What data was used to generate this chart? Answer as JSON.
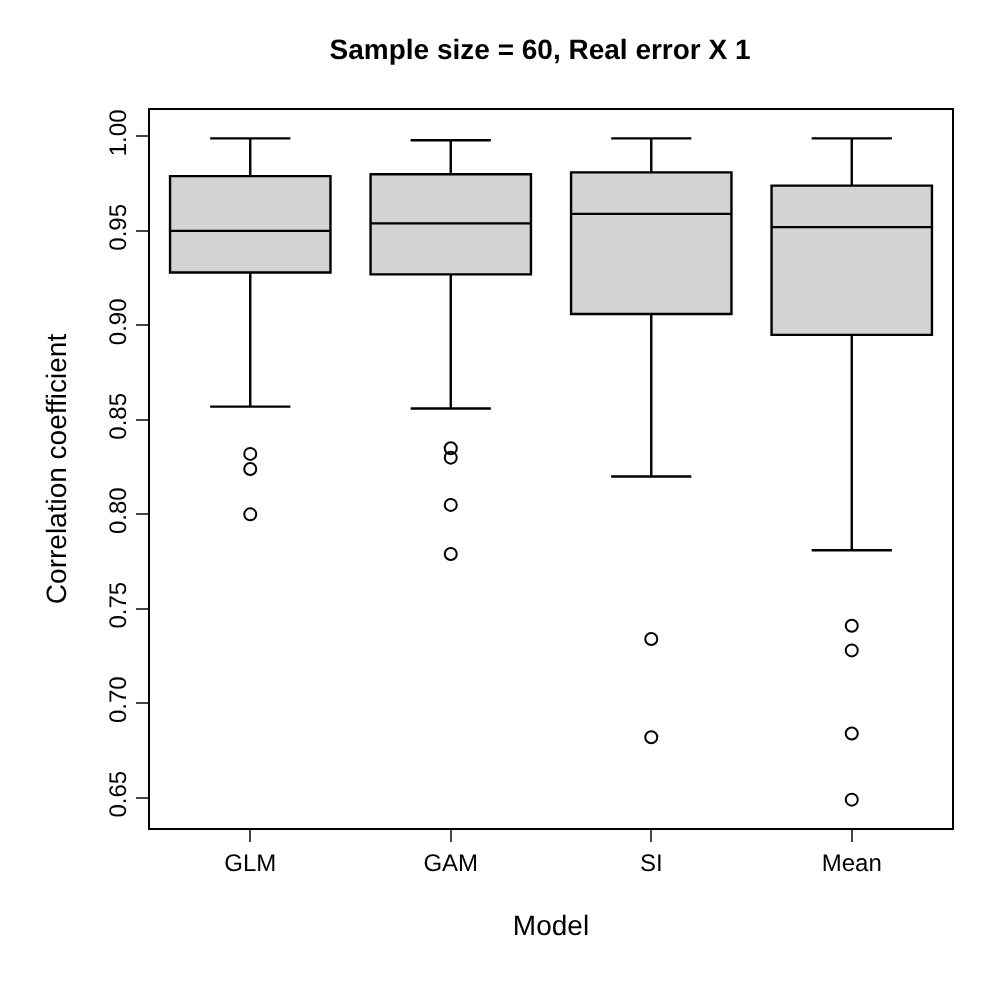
{
  "chart_data": {
    "type": "box",
    "title": "Sample size = 60, Real error X 1",
    "xlabel": "Model",
    "ylabel": "Correlation coefficient",
    "categories": [
      "GLM",
      "GAM",
      "SI",
      "Mean"
    ],
    "boxes": [
      {
        "low": 0.857,
        "q1": 0.928,
        "median": 0.95,
        "q3": 0.979,
        "high": 0.999,
        "outliers": [
          0.832,
          0.824,
          0.8
        ]
      },
      {
        "low": 0.856,
        "q1": 0.927,
        "median": 0.954,
        "q3": 0.98,
        "high": 0.998,
        "outliers": [
          0.835,
          0.83,
          0.805,
          0.779
        ]
      },
      {
        "low": 0.82,
        "q1": 0.906,
        "median": 0.959,
        "q3": 0.981,
        "high": 0.999,
        "outliers": [
          0.734,
          0.682
        ]
      },
      {
        "low": 0.781,
        "q1": 0.895,
        "median": 0.952,
        "q3": 0.974,
        "high": 0.999,
        "outliers": [
          0.741,
          0.728,
          0.684,
          0.649
        ]
      }
    ],
    "color": "#d3d3d3",
    "marker": "circle",
    "ylim": [
      0.634,
      1.014
    ],
    "yticks": [
      0.65,
      {
        "value": 0.7,
        "label": "0.70"
      },
      0.75,
      {
        "value": 0.8,
        "label": "0.80"
      },
      0.85,
      {
        "value": 0.9,
        "label": "0.90"
      },
      0.95,
      {
        "value": 1.0,
        "label": "1.00"
      }
    ]
  }
}
